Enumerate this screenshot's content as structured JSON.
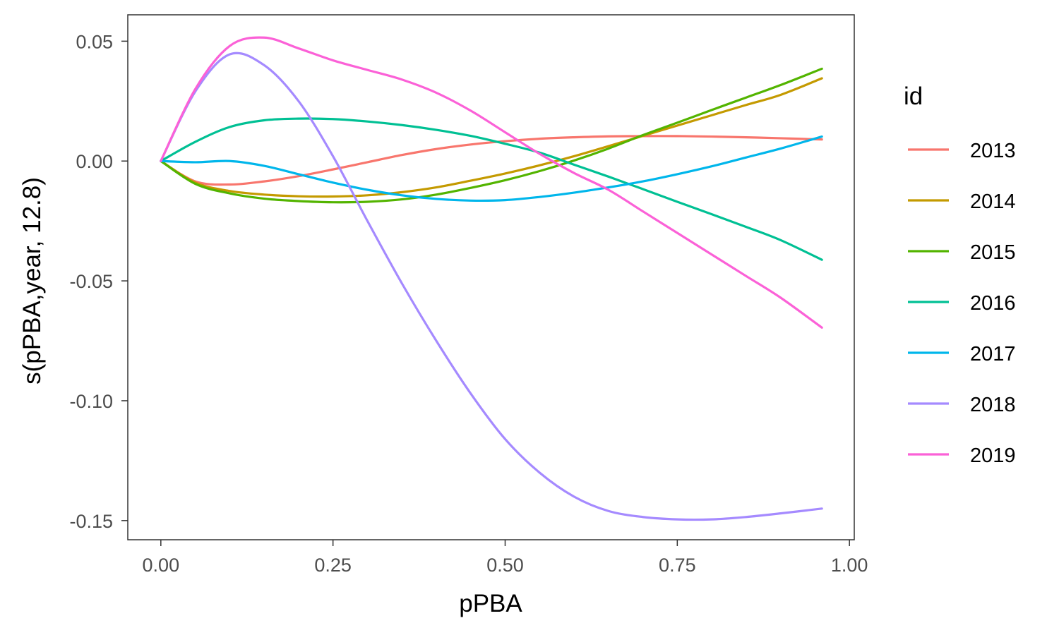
{
  "chart_data": {
    "type": "line",
    "xlabel": "pPBA",
    "ylabel": "s(pPBA,year, 12.8)",
    "xlim": [
      -0.048,
      1.007
    ],
    "ylim": [
      -0.158,
      0.061
    ],
    "x_ticks": [
      0.0,
      0.25,
      0.5,
      0.75,
      1.0
    ],
    "x_tick_labels": [
      "0.00",
      "0.25",
      "0.50",
      "0.75",
      "1.00"
    ],
    "y_ticks": [
      0.05,
      0.0,
      -0.05,
      -0.1,
      -0.15
    ],
    "y_tick_labels": [
      "0.05",
      "0.00",
      "-0.05",
      "-0.10",
      "-0.15"
    ],
    "grid": false,
    "legend": {
      "title": "id",
      "position": "right"
    },
    "x": [
      0.0,
      0.05,
      0.1,
      0.15,
      0.2,
      0.25,
      0.3,
      0.35,
      0.4,
      0.45,
      0.5,
      0.55,
      0.6,
      0.65,
      0.7,
      0.75,
      0.8,
      0.85,
      0.9,
      0.96
    ],
    "series": [
      {
        "name": "2013",
        "color": "#F8766D",
        "values": [
          0.0,
          -0.0085,
          -0.0098,
          -0.0085,
          -0.0063,
          -0.0035,
          -0.0005,
          0.0025,
          0.005,
          0.0069,
          0.0083,
          0.0093,
          0.0099,
          0.0103,
          0.0104,
          0.0104,
          0.0102,
          0.0099,
          0.0095,
          0.009
        ]
      },
      {
        "name": "2014",
        "color": "#C49A00",
        "values": [
          0.0,
          -0.009,
          -0.0125,
          -0.014,
          -0.0147,
          -0.0148,
          -0.0143,
          -0.013,
          -0.011,
          -0.0082,
          -0.0052,
          -0.0018,
          0.002,
          0.0062,
          0.0105,
          0.0148,
          0.0191,
          0.0234,
          0.0276,
          0.0345
        ]
      },
      {
        "name": "2015",
        "color": "#53B400",
        "values": [
          0.0,
          -0.0095,
          -0.0135,
          -0.0157,
          -0.0167,
          -0.0172,
          -0.017,
          -0.016,
          -0.014,
          -0.0112,
          -0.008,
          -0.0042,
          0.0002,
          0.0052,
          0.0108,
          0.016,
          0.0213,
          0.0265,
          0.0317,
          0.0385
        ]
      },
      {
        "name": "2016",
        "color": "#00C094",
        "values": [
          0.0,
          0.008,
          0.0142,
          0.017,
          0.0177,
          0.0175,
          0.0165,
          0.015,
          0.013,
          0.0105,
          0.0072,
          0.0035,
          -0.0015,
          -0.0065,
          -0.0117,
          -0.017,
          -0.0222,
          -0.0275,
          -0.033,
          -0.0412
        ]
      },
      {
        "name": "2017",
        "color": "#00B6EB",
        "values": [
          0.0,
          -0.0005,
          0.0,
          -0.002,
          -0.0055,
          -0.009,
          -0.012,
          -0.0143,
          -0.0158,
          -0.0165,
          -0.0163,
          -0.015,
          -0.0132,
          -0.011,
          -0.0085,
          -0.0055,
          -0.0022,
          0.0015,
          0.0052,
          0.0102
        ]
      },
      {
        "name": "2018",
        "color": "#A58AFF",
        "values": [
          0.0,
          0.029,
          0.0445,
          0.04,
          0.025,
          0.002,
          -0.025,
          -0.051,
          -0.075,
          -0.097,
          -0.116,
          -0.13,
          -0.14,
          -0.146,
          -0.1485,
          -0.1495,
          -0.1495,
          -0.1485,
          -0.147,
          -0.145
        ]
      },
      {
        "name": "2019",
        "color": "#FB61D7",
        "values": [
          0.0,
          0.03,
          0.048,
          0.0515,
          0.047,
          0.042,
          0.038,
          0.034,
          0.0285,
          0.021,
          0.012,
          0.003,
          -0.005,
          -0.012,
          -0.021,
          -0.03,
          -0.039,
          -0.048,
          -0.057,
          -0.0695
        ]
      }
    ]
  }
}
